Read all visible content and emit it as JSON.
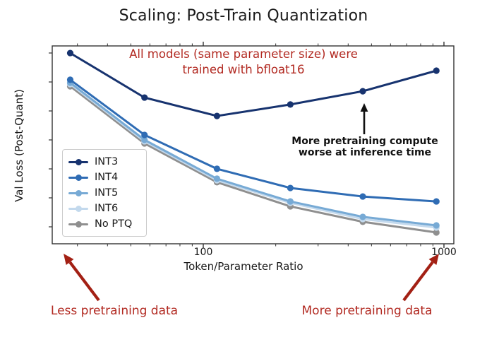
{
  "page_title": "Scaling: Post-Train Quantization",
  "chart_data": {
    "type": "line",
    "title": "Scaling: Post-Train Quantization",
    "xlabel": "Token/Parameter Ratio",
    "ylabel": "Val Loss (Post-Quant)",
    "x_scale": "log",
    "x_ticks_labeled": [
      100,
      1000
    ],
    "x_range": [
      22,
      1100
    ],
    "y_axis_note": "y ticks present but unlabeled; values below are normalized estimates (0 = bottom of axis, 1 = top)",
    "ylim": [
      0,
      1
    ],
    "grid": false,
    "legend_position": "center-left",
    "x": [
      28,
      57,
      114,
      230,
      460,
      930
    ],
    "series": [
      {
        "name": "INT3",
        "color": "#17336f",
        "values": [
          0.964,
          0.739,
          0.646,
          0.704,
          0.771,
          0.875
        ]
      },
      {
        "name": "INT4",
        "color": "#2f6cb4",
        "values": [
          0.829,
          0.55,
          0.379,
          0.282,
          0.239,
          0.214
        ]
      },
      {
        "name": "INT5",
        "color": "#77aad5",
        "values": [
          0.814,
          0.525,
          0.329,
          0.214,
          0.136,
          0.093
        ]
      },
      {
        "name": "INT6",
        "color": "#c3d9ed",
        "values": [
          0.807,
          0.518,
          0.321,
          0.207,
          0.125,
          0.082
        ]
      },
      {
        "name": "No PTQ",
        "color": "#8f8f8f",
        "values": [
          0.796,
          0.507,
          0.311,
          0.189,
          0.111,
          0.057
        ]
      }
    ]
  },
  "axes": {
    "xlabel": "Token/Parameter Ratio",
    "ylabel": "Val Loss (Post-Quant)",
    "x_tick_labels": [
      "100",
      "1000"
    ]
  },
  "annotations": {
    "red_note": {
      "line1": "All models (same parameter size) were",
      "line2": "trained with bfloat16",
      "color": "#b22a22"
    },
    "black_note": {
      "line1": "More pretraining compute",
      "line2": "worse at inference time",
      "color": "#111111"
    },
    "bottom_left": "Less pretraining data",
    "bottom_right": "More pretraining data",
    "arrow_color_red": "#a32014",
    "arrow_color_black": "#111111"
  }
}
